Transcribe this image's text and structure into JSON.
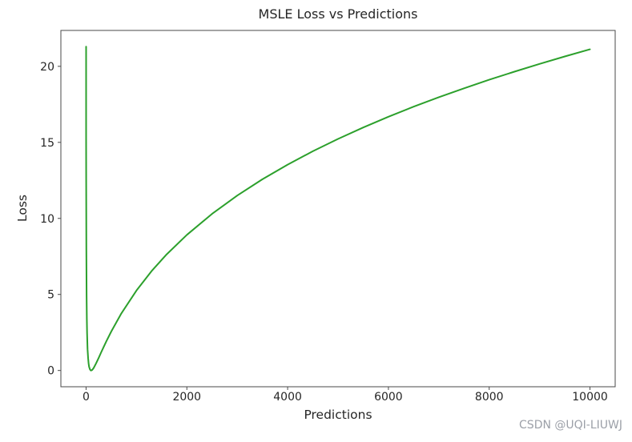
{
  "figure": {
    "watermark": "CSDN @UQI-LIUWJ"
  },
  "colors": {
    "background": "#ffffff",
    "axes": "#4a4a4a",
    "tick_text": "#262626",
    "line": "#2ca02c",
    "watermark": "#9ca0a8"
  },
  "chart_data": {
    "type": "line",
    "title": "MSLE Loss vs Predictions",
    "xlabel": "Predictions",
    "ylabel": "Loss",
    "xlim": [
      -500,
      10500
    ],
    "ylim": [
      -1.07,
      22.36
    ],
    "xticks": [
      0,
      2000,
      4000,
      6000,
      8000,
      10000
    ],
    "yticks": [
      0,
      5,
      10,
      15,
      20
    ],
    "grid": false,
    "legend_position": "none",
    "line_color": "#2ca02c",
    "line_width": 2,
    "series": [
      {
        "name": "MSLE Loss",
        "x": [
          0,
          1,
          2,
          5,
          10,
          15,
          20,
          30,
          40,
          50,
          60,
          75,
          90,
          100,
          120,
          150,
          200,
          250,
          300,
          400,
          500,
          700,
          1000,
          1300,
          1600,
          2000,
          2500,
          3000,
          3500,
          4000,
          4500,
          5000,
          5500,
          6000,
          6500,
          7000,
          7500,
          8000,
          8500,
          9000,
          9500,
          10000
        ],
        "y": [
          21.299,
          15.382,
          12.366,
          7.971,
          4.916,
          3.395,
          2.467,
          1.395,
          0.813,
          0.467,
          0.254,
          0.081,
          0.011,
          0,
          0.033,
          0.162,
          0.474,
          0.829,
          1.192,
          1.901,
          2.565,
          3.753,
          5.261,
          6.532,
          7.636,
          8.918,
          10.3,
          11.503,
          12.572,
          13.536,
          14.416,
          15.228,
          15.981,
          16.684,
          17.345,
          17.967,
          18.555,
          19.116,
          19.65,
          20.159,
          20.648,
          21.117
        ]
      }
    ]
  }
}
